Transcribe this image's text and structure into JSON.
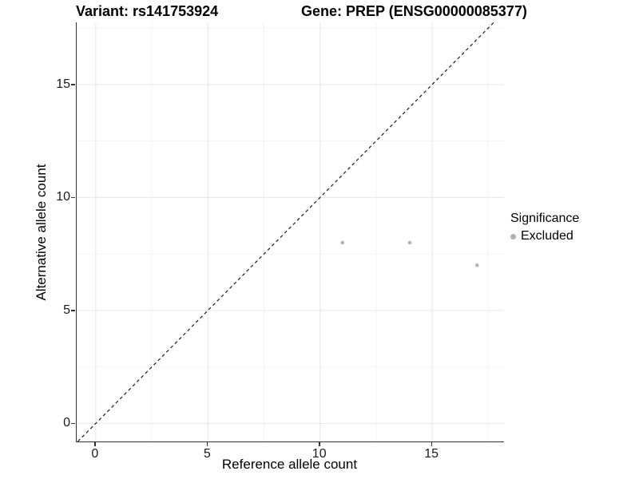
{
  "header": {
    "title_left": "Variant: rs141753924",
    "title_right": "Gene: PREP (ENSG00000085377)"
  },
  "chart_data": {
    "type": "scatter",
    "title": "Variant: rs141753924 / Gene: PREP (ENSG00000085377)",
    "xlabel": "Reference allele count",
    "ylabel": "Alternative allele count",
    "xlim": [
      -0.85,
      18.2
    ],
    "ylim": [
      -0.8,
      17.75
    ],
    "x_ticks": [
      0,
      5,
      10,
      15
    ],
    "y_ticks": [
      0,
      5,
      10,
      15
    ],
    "x_minor": [
      2.5,
      7.5,
      12.5,
      17.5
    ],
    "y_minor": [
      2.5,
      7.5,
      12.5,
      17.5
    ],
    "grid": true,
    "series": [
      {
        "name": "Excluded",
        "color": "#b4b4b4",
        "points": [
          [
            11,
            8
          ],
          [
            14,
            8
          ],
          [
            17,
            7
          ]
        ]
      }
    ],
    "reference_line": {
      "type": "identity",
      "style": "dashed",
      "color": "#1a1a1a"
    },
    "legend": {
      "title": "Significance",
      "position": "right",
      "items": [
        {
          "label": "Excluded",
          "color": "#b0b0b0"
        }
      ]
    },
    "colors": {
      "grid_major": "#e6e6e6",
      "grid_minor": "#f3f3f3",
      "axis_line": "#333333",
      "text": "#000000"
    }
  }
}
